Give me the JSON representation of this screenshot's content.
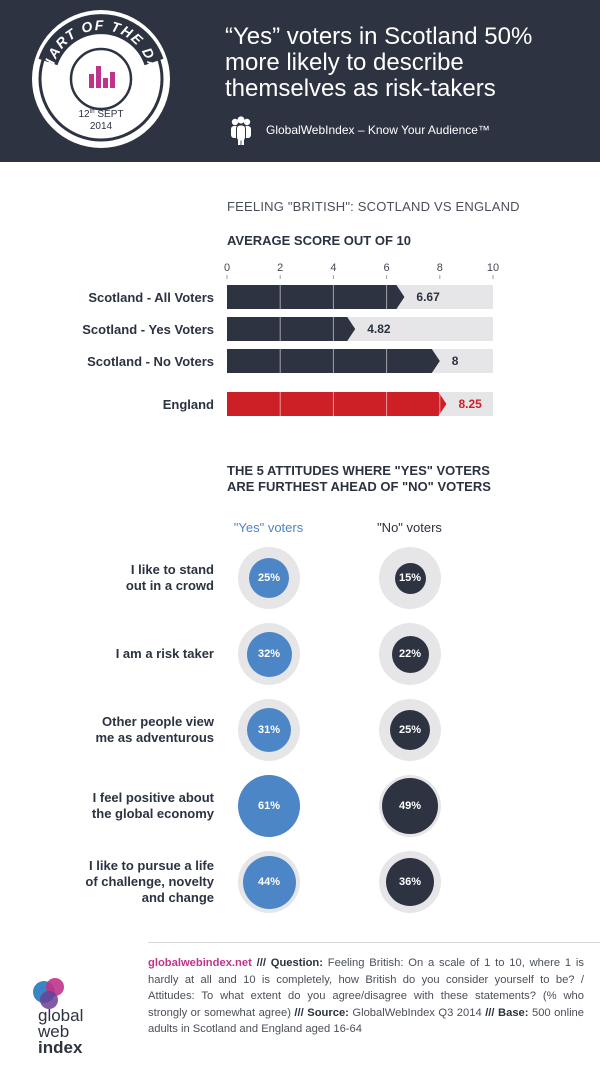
{
  "header": {
    "badge_text": "CHART OF THE DAY",
    "date_line1": "12",
    "date_sup": "th",
    "date_month": "SEPT",
    "date_year": "2014",
    "headline_lines": [
      "“Yes” voters in Scotland 50%",
      "more likely to describe",
      "themselves as risk-takers"
    ],
    "tagline": "GlobalWebIndex – Know Your Audience™",
    "people_icon": "people-group-icon"
  },
  "section1": {
    "title": "FEELING \"BRITISH\": SCOTLAND VS ENGLAND",
    "subtitle": "AVERAGE SCORE OUT OF 10"
  },
  "chart_data": {
    "type": "bar",
    "orientation": "horizontal",
    "categories": [
      "Scotland - All Voters",
      "Scotland - Yes Voters",
      "Scotland - No Voters",
      "England"
    ],
    "values": [
      6.67,
      4.82,
      8,
      8.25
    ],
    "value_labels": [
      "6.67",
      "4.82",
      "8",
      "8.25"
    ],
    "xlim": [
      0,
      10
    ],
    "ticks": [
      "0",
      "2",
      "4",
      "6",
      "8",
      "10"
    ],
    "grid": true,
    "colors": [
      "#2d3341",
      "#2d3341",
      "#2d3341",
      "#cc1f26"
    ]
  },
  "section2": {
    "title_lines": [
      "THE 5 ATTITUDES WHERE \"YES\" VOTERS",
      "ARE FURTHEST AHEAD OF \"NO\" VOTERS"
    ],
    "col_yes": "\"Yes\" voters",
    "col_no": "\"No\" voters",
    "rows": [
      {
        "label_lines": [
          "I like to stand",
          "out in a crowd"
        ],
        "yes": 25,
        "yes_label": "25%",
        "no": 15,
        "no_label": "15%"
      },
      {
        "label_lines": [
          "I am a risk taker"
        ],
        "yes": 32,
        "yes_label": "32%",
        "no": 22,
        "no_label": "22%"
      },
      {
        "label_lines": [
          "Other people view",
          "me as adventurous"
        ],
        "yes": 31,
        "yes_label": "31%",
        "no": 25,
        "no_label": "25%"
      },
      {
        "label_lines": [
          "I feel positive about",
          "the global economy"
        ],
        "yes": 61,
        "yes_label": "61%",
        "no": 49,
        "no_label": "49%"
      },
      {
        "label_lines": [
          "I like to pursue a life",
          "of challenge, novelty",
          "and change"
        ],
        "yes": 44,
        "yes_label": "44%",
        "no": 36,
        "no_label": "36%"
      }
    ],
    "colors": {
      "yes": "#4d86c6",
      "no": "#2d3341"
    }
  },
  "footer": {
    "site": "globalwebindex.net",
    "sep1": " /// ",
    "q_label": "Question:",
    "q_text": " Feeling British: On a scale of 1 to 10, where 1 is hardly at all and 10 is completely, how British do you consider yourself to be? / Attitudes: To what extent do you agree/disagree with these statements? (% who strongly or somewhat agree) ",
    "sep2": "/// ",
    "source_label": "Source:",
    "source_text": " GlobalWebIndex Q3 2014 ",
    "sep3": "/// ",
    "base_label": "Base:",
    "base_text": " 500 online adults in Scotland and England aged 16-64",
    "logo_lines": [
      "global",
      "web",
      "index"
    ]
  }
}
